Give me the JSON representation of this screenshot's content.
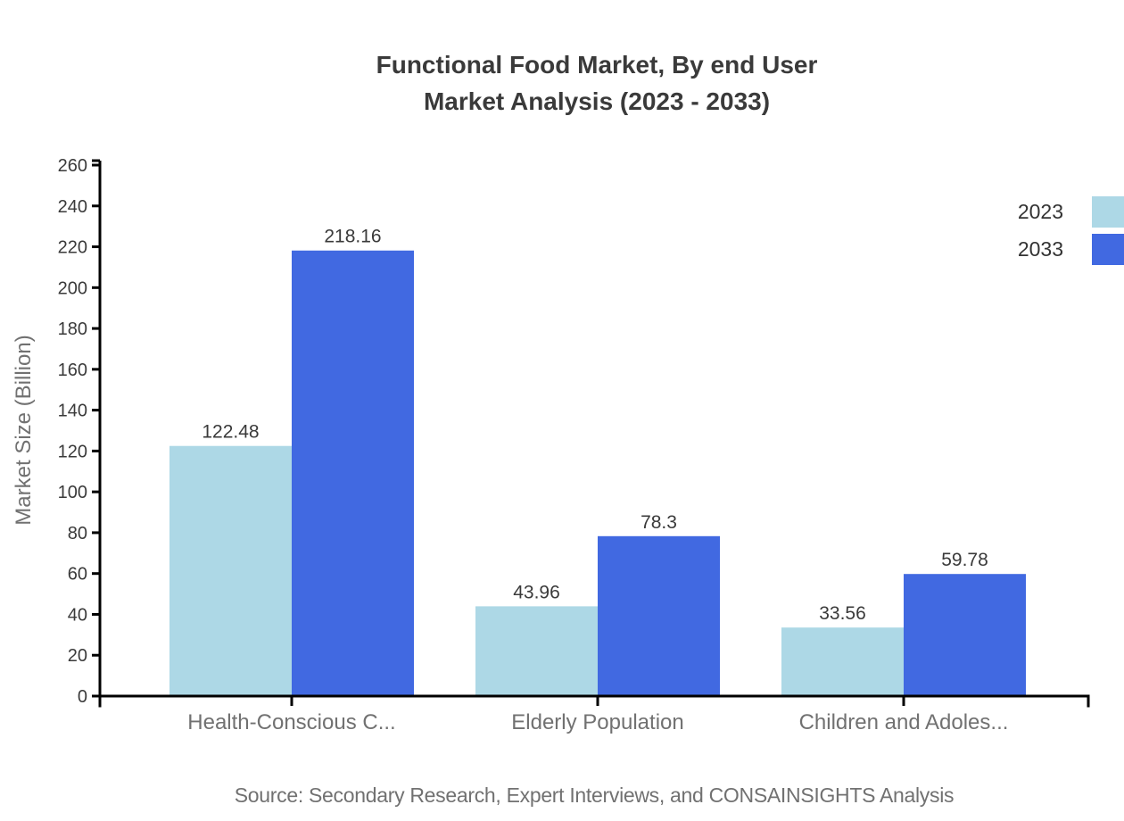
{
  "header": {
    "title_line1": "Functional Food Market, By end User",
    "title_line2": "Market Analysis (2023 - 2033)"
  },
  "footer": {
    "source": "Source: Secondary Research, Expert Interviews, and CONSAINSIGHTS Analysis"
  },
  "chart_data": {
    "type": "bar",
    "title": "Functional Food Market, By end User Market Analysis (2023 - 2033)",
    "categories": [
      "Health-Conscious C...",
      "Elderly Population",
      "Children and Adoles..."
    ],
    "series": [
      {
        "name": "2023",
        "color": "#ADD8E6",
        "values": [
          122.48,
          43.96,
          33.56
        ]
      },
      {
        "name": "2033",
        "color": "#4169E1",
        "values": [
          218.16,
          78.3,
          59.78
        ]
      }
    ],
    "ylabel": "Market Size (Billion)",
    "xlabel": "",
    "ylim": [
      0,
      260
    ],
    "ytick_step": 20,
    "grid": false,
    "legend_position": "top-right",
    "value_labels_shown": true
  }
}
